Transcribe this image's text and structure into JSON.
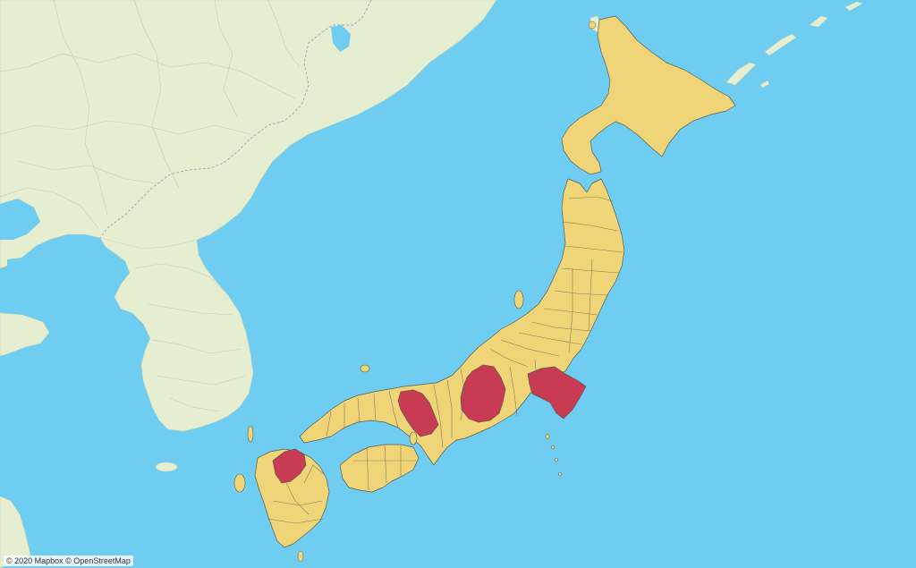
{
  "attribution": "© 2020 Mapbox © OpenStreetMap",
  "colors": {
    "water": "#6ecdf0",
    "land": "#e6eed2",
    "prefecture_default": "#f0d578",
    "prefecture_highlight": "#c93a53"
  }
}
